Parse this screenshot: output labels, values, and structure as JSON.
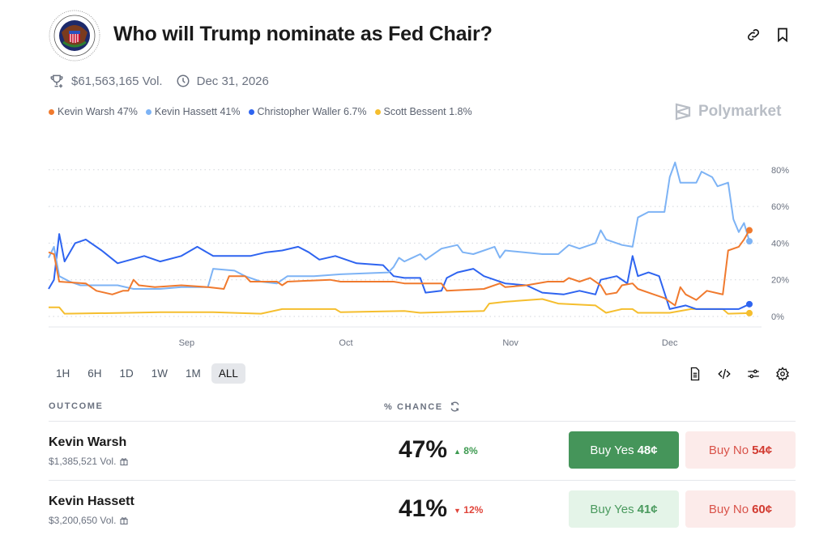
{
  "header": {
    "title": "Who will Trump nominate as Fed Chair?",
    "logo_text": "Board of Governors of the Federal Reserve System",
    "volume": "$61,563,165 Vol.",
    "end_date": "Dec 31, 2026",
    "brand": "Polymarket"
  },
  "legend": [
    {
      "label": "Kevin Warsh 47%",
      "color": "#F07A2E"
    },
    {
      "label": "Kevin Hassett 41%",
      "color": "#7DB3F5"
    },
    {
      "label": "Christopher Waller 6.7%",
      "color": "#2E64F0"
    },
    {
      "label": "Scott Bessent 1.8%",
      "color": "#F5BE2E"
    }
  ],
  "ranges": [
    "1H",
    "6H",
    "1D",
    "1W",
    "1M",
    "ALL"
  ],
  "selected_range": "ALL",
  "table": {
    "col_outcome": "OUTCOME",
    "col_chance": "% CHANCE",
    "rows": [
      {
        "name": "Kevin Warsh",
        "volume": "$1,385,521 Vol.",
        "chance": "47%",
        "change": "8%",
        "direction": "up",
        "yes": "Buy Yes",
        "yes_price": "48¢",
        "no": "Buy No",
        "no_price": "54¢"
      },
      {
        "name": "Kevin Hassett",
        "volume": "$3,200,650 Vol.",
        "chance": "41%",
        "change": "12%",
        "direction": "down",
        "yes": "Buy Yes",
        "yes_price": "41¢",
        "no": "Buy No",
        "no_price": "60¢"
      }
    ]
  },
  "chart_data": {
    "type": "line",
    "x_range": [
      "Aug 6",
      "Dec 16"
    ],
    "x_ticks": [
      "Sep",
      "Oct",
      "Nov",
      "Dec"
    ],
    "y_ticks": [
      "0%",
      "20%",
      "40%",
      "60%",
      "80%"
    ],
    "ylim": [
      0,
      85
    ],
    "grid": true,
    "series": [
      {
        "name": "Kevin Warsh",
        "color": "#F07A2E",
        "points": [
          [
            "Aug 6",
            35
          ],
          [
            "Aug 7",
            34
          ],
          [
            "Aug 8",
            19
          ],
          [
            "Aug 13",
            18
          ],
          [
            "Aug 15",
            14
          ],
          [
            "Aug 18",
            12
          ],
          [
            "Aug 20",
            14
          ],
          [
            "Aug 21",
            14
          ],
          [
            "Aug 22",
            20
          ],
          [
            "Aug 23",
            17
          ],
          [
            "Aug 26",
            16
          ],
          [
            "Aug 31",
            17
          ],
          [
            "Sep 5",
            16
          ],
          [
            "Sep 8",
            15
          ],
          [
            "Sep 9",
            22
          ],
          [
            "Sep 12",
            22
          ],
          [
            "Sep 13",
            19
          ],
          [
            "Sep 18",
            19
          ],
          [
            "Sep 19",
            17
          ],
          [
            "Sep 20",
            19
          ],
          [
            "Sep 28",
            20
          ],
          [
            "Sep 30",
            19
          ],
          [
            "Oct 10",
            19
          ],
          [
            "Oct 12",
            18
          ],
          [
            "Oct 19",
            18
          ],
          [
            "Oct 20",
            14
          ],
          [
            "Oct 27",
            15
          ],
          [
            "Oct 30",
            18
          ],
          [
            "Oct 31",
            16
          ],
          [
            "Nov 4",
            17
          ],
          [
            "Nov 8",
            19
          ],
          [
            "Nov 11",
            19
          ],
          [
            "Nov 12",
            21
          ],
          [
            "Nov 14",
            19
          ],
          [
            "Nov 16",
            21
          ],
          [
            "Nov 18",
            17
          ],
          [
            "Nov 19",
            12
          ],
          [
            "Nov 21",
            13
          ],
          [
            "Nov 22",
            17
          ],
          [
            "Nov 24",
            18
          ],
          [
            "Nov 25",
            15
          ],
          [
            "Nov 28",
            12
          ],
          [
            "Nov 30",
            10
          ],
          [
            "Dec 2",
            6
          ],
          [
            "Dec 3",
            16
          ],
          [
            "Dec 4",
            12
          ],
          [
            "Dec 6",
            9
          ],
          [
            "Dec 8",
            14
          ],
          [
            "Dec 11",
            12
          ],
          [
            "Dec 12",
            36
          ],
          [
            "Dec 14",
            38
          ],
          [
            "Dec 15",
            42
          ],
          [
            "Dec 16",
            47
          ]
        ]
      },
      {
        "name": "Kevin Hassett",
        "color": "#7DB3F5",
        "points": [
          [
            "Aug 6",
            32
          ],
          [
            "Aug 7",
            38
          ],
          [
            "Aug 8",
            22
          ],
          [
            "Aug 10",
            19
          ],
          [
            "Aug 12",
            17
          ],
          [
            "Aug 19",
            17
          ],
          [
            "Aug 22",
            15
          ],
          [
            "Aug 27",
            15
          ],
          [
            "Aug 31",
            16
          ],
          [
            "Sep 5",
            16
          ],
          [
            "Sep 6",
            26
          ],
          [
            "Sep 10",
            25
          ],
          [
            "Sep 12",
            22
          ],
          [
            "Sep 15",
            19
          ],
          [
            "Sep 18",
            18
          ],
          [
            "Sep 20",
            22
          ],
          [
            "Sep 25",
            22
          ],
          [
            "Sep 30",
            23
          ],
          [
            "Oct 9",
            24
          ],
          [
            "Oct 10",
            27
          ],
          [
            "Oct 11",
            32
          ],
          [
            "Oct 12",
            30
          ],
          [
            "Oct 15",
            34
          ],
          [
            "Oct 16",
            31
          ],
          [
            "Oct 19",
            37
          ],
          [
            "Oct 22",
            39
          ],
          [
            "Oct 23",
            35
          ],
          [
            "Oct 25",
            34
          ],
          [
            "Oct 27",
            36
          ],
          [
            "Oct 29",
            38
          ],
          [
            "Oct 30",
            32
          ],
          [
            "Oct 31",
            36
          ],
          [
            "Nov 7",
            34
          ],
          [
            "Nov 10",
            34
          ],
          [
            "Nov 12",
            39
          ],
          [
            "Nov 14",
            37
          ],
          [
            "Nov 17",
            40
          ],
          [
            "Nov 18",
            47
          ],
          [
            "Nov 19",
            42
          ],
          [
            "Nov 22",
            39
          ],
          [
            "Nov 24",
            38
          ],
          [
            "Nov 25",
            54
          ],
          [
            "Nov 27",
            57
          ],
          [
            "Nov 30",
            57
          ],
          [
            "Dec 1",
            76
          ],
          [
            "Dec 2",
            84
          ],
          [
            "Dec 3",
            73
          ],
          [
            "Dec 6",
            73
          ],
          [
            "Dec 7",
            79
          ],
          [
            "Dec 9",
            76
          ],
          [
            "Dec 10",
            71
          ],
          [
            "Dec 12",
            73
          ],
          [
            "Dec 13",
            53
          ],
          [
            "Dec 14",
            46
          ],
          [
            "Dec 15",
            51
          ],
          [
            "Dec 16",
            41
          ]
        ]
      },
      {
        "name": "Christopher Waller",
        "color": "#2E64F0",
        "points": [
          [
            "Aug 6",
            15
          ],
          [
            "Aug 7",
            20
          ],
          [
            "Aug 8",
            45
          ],
          [
            "Aug 9",
            30
          ],
          [
            "Aug 11",
            40
          ],
          [
            "Aug 13",
            42
          ],
          [
            "Aug 16",
            36
          ],
          [
            "Aug 19",
            29
          ],
          [
            "Aug 24",
            33
          ],
          [
            "Aug 27",
            30
          ],
          [
            "Aug 31",
            33
          ],
          [
            "Sep 3",
            38
          ],
          [
            "Sep 6",
            33
          ],
          [
            "Sep 13",
            33
          ],
          [
            "Sep 16",
            35
          ],
          [
            "Sep 19",
            36
          ],
          [
            "Sep 22",
            38
          ],
          [
            "Sep 24",
            35
          ],
          [
            "Sep 26",
            31
          ],
          [
            "Sep 29",
            33
          ],
          [
            "Oct 3",
            29
          ],
          [
            "Oct 8",
            28
          ],
          [
            "Oct 10",
            22
          ],
          [
            "Oct 12",
            21
          ],
          [
            "Oct 15",
            21
          ],
          [
            "Oct 16",
            13
          ],
          [
            "Oct 19",
            14
          ],
          [
            "Oct 20",
            21
          ],
          [
            "Oct 22",
            24
          ],
          [
            "Oct 25",
            26
          ],
          [
            "Oct 27",
            22
          ],
          [
            "Oct 31",
            18
          ],
          [
            "Nov 4",
            17
          ],
          [
            "Nov 7",
            13
          ],
          [
            "Nov 11",
            12
          ],
          [
            "Nov 14",
            14
          ],
          [
            "Nov 17",
            12
          ],
          [
            "Nov 18",
            20
          ],
          [
            "Nov 21",
            22
          ],
          [
            "Nov 23",
            18
          ],
          [
            "Nov 24",
            33
          ],
          [
            "Nov 25",
            22
          ],
          [
            "Nov 27",
            24
          ],
          [
            "Nov 29",
            22
          ],
          [
            "Dec 1",
            4
          ],
          [
            "Dec 4",
            6
          ],
          [
            "Dec 6",
            4
          ],
          [
            "Dec 11",
            4
          ],
          [
            "Dec 14",
            4
          ],
          [
            "Dec 16",
            6.7
          ]
        ]
      },
      {
        "name": "Scott Bessent",
        "color": "#F5BE2E",
        "points": [
          [
            "Aug 6",
            5
          ],
          [
            "Aug 8",
            5
          ],
          [
            "Aug 9",
            1.5
          ],
          [
            "Aug 21",
            2
          ],
          [
            "Aug 27",
            2.3
          ],
          [
            "Sep 6",
            2.3
          ],
          [
            "Sep 15",
            1.5
          ],
          [
            "Sep 19",
            4
          ],
          [
            "Sep 29",
            4
          ],
          [
            "Sep 30",
            2.3
          ],
          [
            "Oct 12",
            3
          ],
          [
            "Oct 15",
            2
          ],
          [
            "Oct 27",
            3
          ],
          [
            "Oct 28",
            7
          ],
          [
            "Oct 31",
            8
          ],
          [
            "Nov 7",
            9.5
          ],
          [
            "Nov 10",
            7
          ],
          [
            "Nov 17",
            6
          ],
          [
            "Nov 19",
            2
          ],
          [
            "Nov 22",
            4
          ],
          [
            "Nov 24",
            4
          ],
          [
            "Nov 25",
            2
          ],
          [
            "Dec 1",
            2
          ],
          [
            "Dec 5",
            4
          ],
          [
            "Dec 11",
            4
          ],
          [
            "Dec 12",
            1.5
          ],
          [
            "Dec 16",
            1.8
          ]
        ]
      }
    ]
  }
}
